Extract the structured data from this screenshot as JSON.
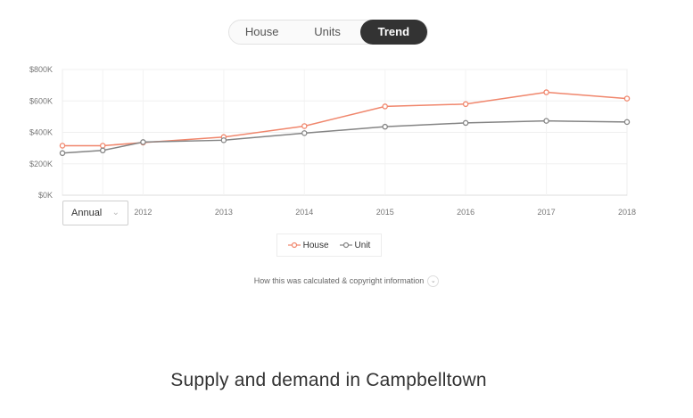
{
  "tabs": [
    {
      "label": "House",
      "active": false
    },
    {
      "label": "Units",
      "active": false
    },
    {
      "label": "Trend",
      "active": true
    }
  ],
  "period_select": {
    "value": "Annual"
  },
  "calc_link": "How this was calculated & copyright information",
  "section_heading": "Supply and demand in Campbelltown",
  "colors": {
    "house": "#f0866c",
    "unit": "#848484",
    "active_tab": "#333333"
  },
  "chart_data": {
    "type": "line",
    "x": [
      2011,
      2011.5,
      2012,
      2013,
      2014,
      2015,
      2016,
      2017,
      2018
    ],
    "xticks": [
      "2012",
      "2013",
      "2014",
      "2015",
      "2016",
      "2017",
      "2018"
    ],
    "yticks": [
      "$0K",
      "$200K",
      "$400K",
      "$600K",
      "$800K"
    ],
    "ylim": [
      0,
      800000
    ],
    "series": [
      {
        "name": "House",
        "values": [
          315000,
          315000,
          335000,
          370000,
          440000,
          565000,
          580000,
          655000,
          615000
        ]
      },
      {
        "name": "Unit",
        "values": [
          268000,
          285000,
          338000,
          350000,
          395000,
          436000,
          460000,
          473000,
          466000
        ]
      }
    ],
    "legend": "bottom-center",
    "grid": true
  }
}
